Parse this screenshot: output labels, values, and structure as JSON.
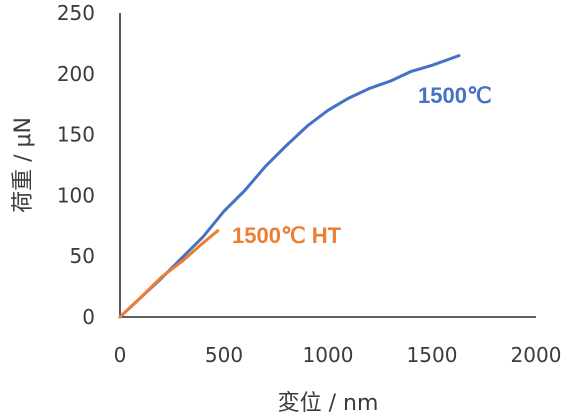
{
  "chart_data": {
    "type": "line",
    "title": "",
    "xlabel": "変位 / nm",
    "ylabel": "荷重 / μN",
    "xlim": [
      0,
      2000
    ],
    "ylim": [
      0,
      250
    ],
    "xticks": [
      0,
      500,
      1000,
      1500,
      2000
    ],
    "yticks": [
      0,
      50,
      100,
      150,
      200,
      250
    ],
    "grid": false,
    "series": [
      {
        "name": "1500℃",
        "color": "#4472C4",
        "x": [
          0,
          100,
          200,
          300,
          400,
          500,
          600,
          700,
          800,
          900,
          1000,
          1100,
          1200,
          1250,
          1300,
          1400,
          1500,
          1630
        ],
        "y": [
          0,
          16,
          32,
          49,
          66,
          87,
          104,
          124,
          141,
          157,
          170,
          180,
          188,
          191,
          194,
          202,
          207,
          215
        ]
      },
      {
        "name": "1500℃ HT",
        "color": "#ED7D31",
        "x": [
          0,
          100,
          200,
          300,
          400,
          470
        ],
        "y": [
          0,
          16,
          33,
          46,
          61,
          71
        ]
      }
    ]
  }
}
